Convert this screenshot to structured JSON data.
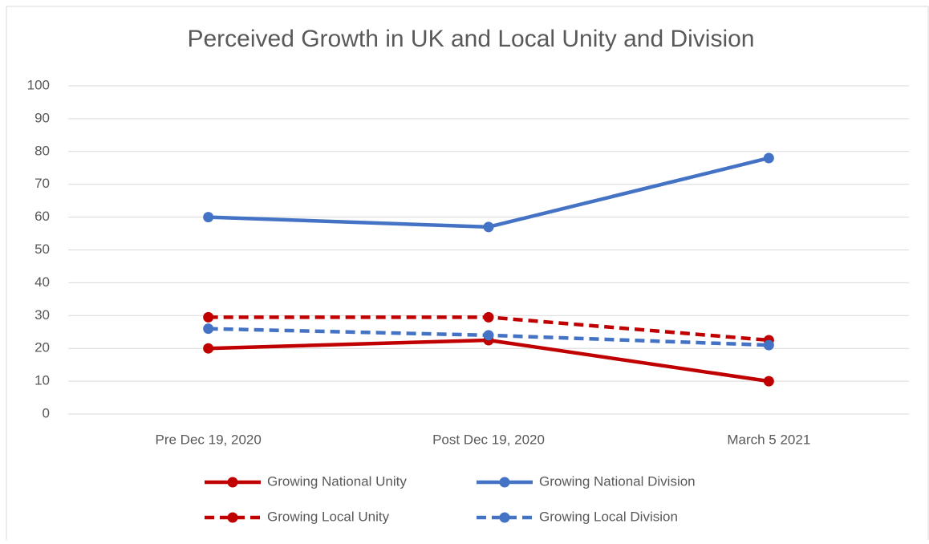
{
  "chart_data": {
    "type": "line",
    "title": "Perceived Growth in UK and Local Unity and Division",
    "categories": [
      "Pre Dec 19, 2020",
      "Post Dec 19, 2020",
      "March 5 2021"
    ],
    "series": [
      {
        "name": "Growing National Unity",
        "color": "#c00000",
        "dashed": false,
        "values": [
          20,
          22.5,
          10
        ]
      },
      {
        "name": "Growing National Division",
        "color": "#4472c4",
        "dashed": false,
        "values": [
          60,
          57,
          78
        ]
      },
      {
        "name": "Growing Local Unity",
        "color": "#c00000",
        "dashed": true,
        "values": [
          29.5,
          29.5,
          22.5
        ]
      },
      {
        "name": "Growing Local Division",
        "color": "#4472c4",
        "dashed": true,
        "values": [
          26,
          24,
          21
        ]
      }
    ],
    "ylim": [
      0,
      100
    ],
    "yticks": [
      0,
      10,
      20,
      30,
      40,
      50,
      60,
      70,
      80,
      90,
      100
    ],
    "grid": true,
    "legend": "bottom"
  }
}
